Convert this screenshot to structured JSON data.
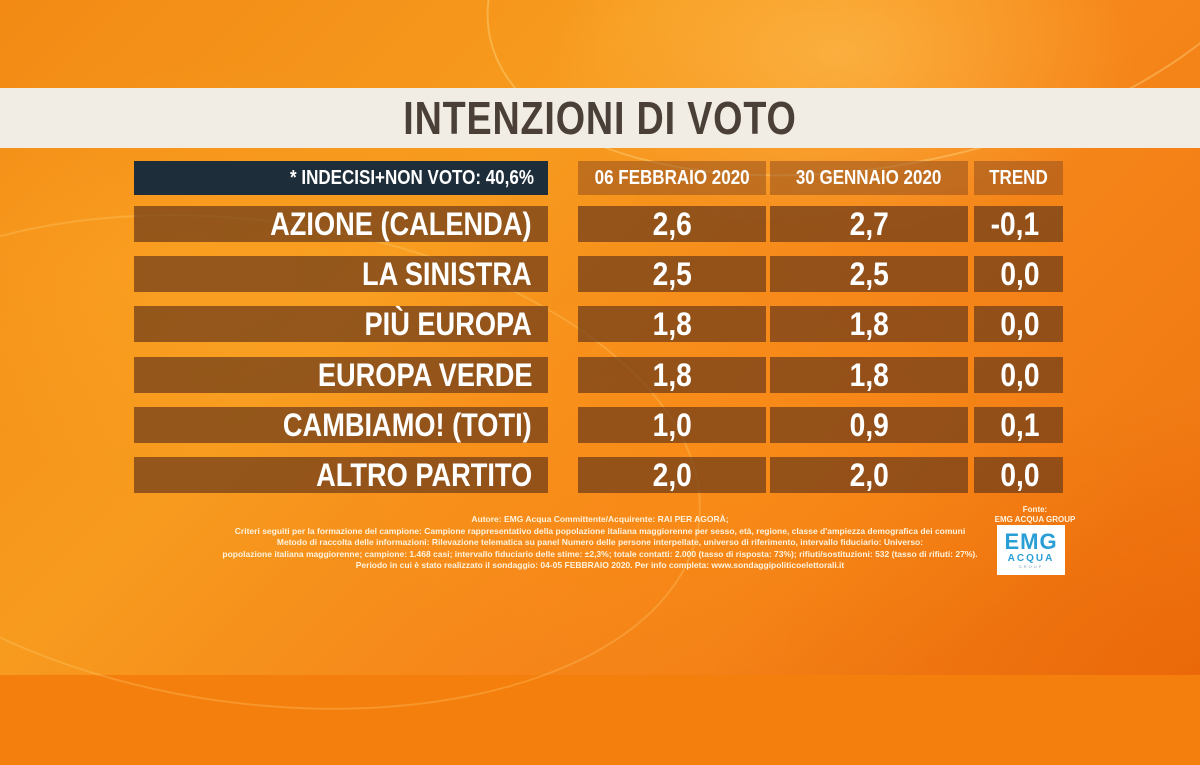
{
  "title": "INTENZIONI DI VOTO",
  "indecisi": "* INDECISI+NON VOTO: 40,6%",
  "columns": {
    "current": "06 FEBBRAIO 2020",
    "previous": "30 GENNAIO 2020",
    "trend": "TREND"
  },
  "rows": [
    {
      "party": "AZIONE (CALENDA)",
      "current": "2,6",
      "previous": "2,7",
      "trend": "-0,1"
    },
    {
      "party": "LA SINISTRA",
      "current": "2,5",
      "previous": "2,5",
      "trend": "0,0"
    },
    {
      "party": "PIÙ EUROPA",
      "current": "1,8",
      "previous": "1,8",
      "trend": "0,0"
    },
    {
      "party": "EUROPA VERDE",
      "current": "1,8",
      "previous": "1,8",
      "trend": "0,0"
    },
    {
      "party": "CAMBIAMO! (TOTI)",
      "current": "1,0",
      "previous": "0,9",
      "trend": "0,1"
    },
    {
      "party": "ALTRO PARTITO",
      "current": "2,0",
      "previous": "2,0",
      "trend": "0,0"
    }
  ],
  "notes": [
    "Autore: EMG Acqua Committente/Acquirente: RAI PER AGORÀ;",
    "Criteri seguiti per la formazione del campione: Campione rappresentativo della popolazione italiana maggiorenne per sesso, età, regione, classe d'ampiezza demografica dei comuni",
    "Metodo di raccolta delle informazioni: Rilevazione telematica su panel Numero delle persone interpellate, universo di riferimento, intervallo fiduciario: Universo:",
    "popolazione italiana maggiorenne; campione: 1.468 casi; intervallo fiduciario delle stime: ±2,3%; totale contatti: 2.000 (tasso di risposta: 73%); rifiuti/sostituzioni: 532 (tasso di rifiuti: 27%).",
    "Periodo in cui è stato realizzato il sondaggio: 04-05 FEBBRAIO 2020. Per info completa: www.sondaggipoliticoelettorali.it"
  ],
  "source": {
    "label": "Fonte:",
    "name": "EMG ACQUA GROUP"
  },
  "logo": {
    "main": "EMG",
    "sub": "ACQUA",
    "tag": "GROUP"
  },
  "colors": {
    "background": "#f57f0c",
    "title_band": "#f1ece4",
    "title_text": "#4a4038",
    "indecisi_bg": "#1e2d3a",
    "cell_bg": "#6e3c19",
    "logo_blue": "#2a9fd6"
  }
}
